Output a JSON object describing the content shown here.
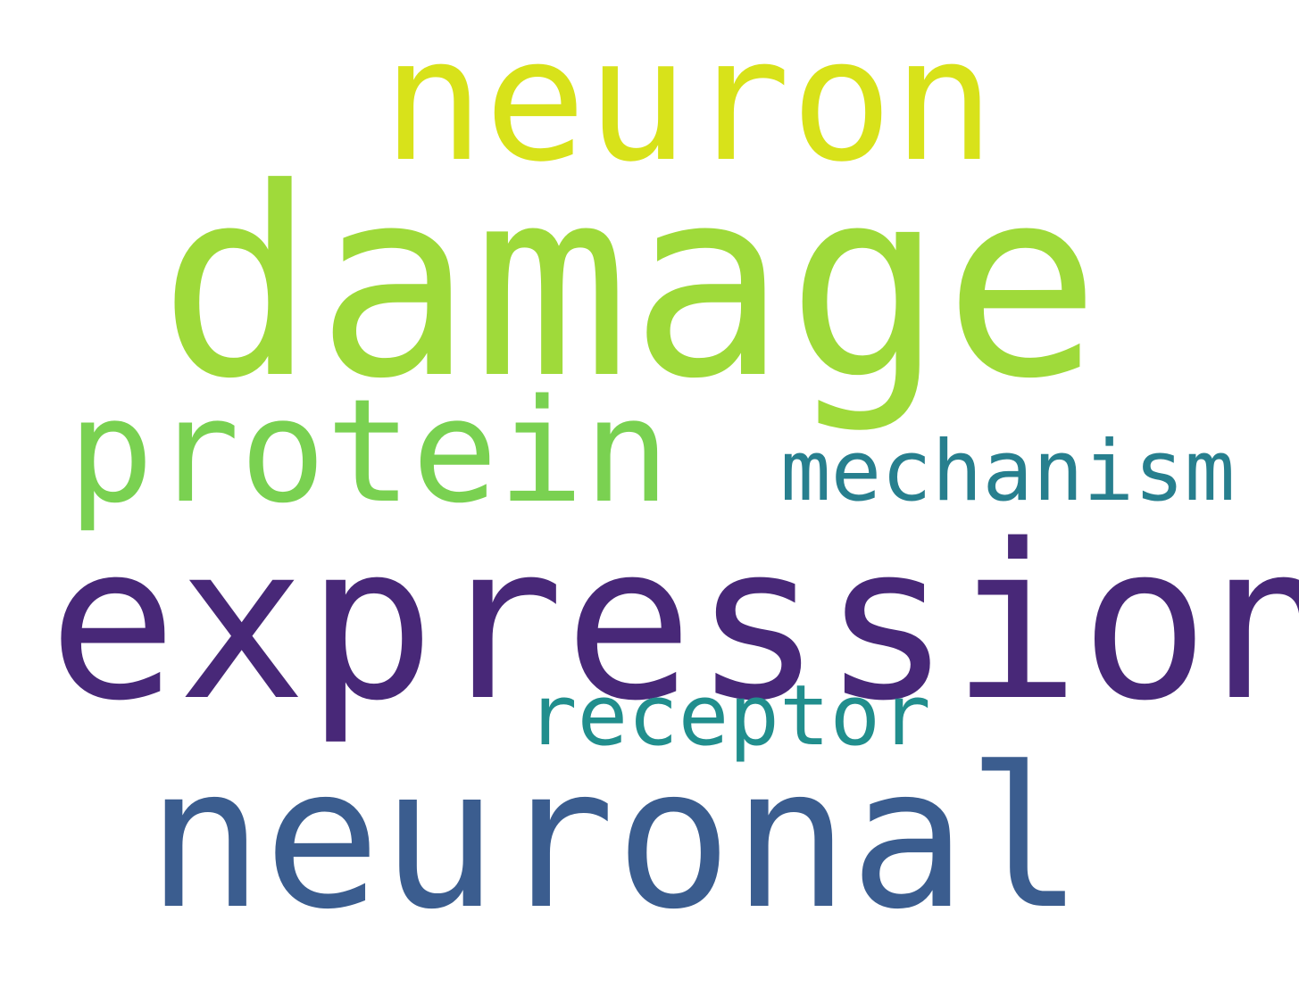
{
  "words": {
    "neuron": {
      "text": "neuron",
      "color": "#d8e21a"
    },
    "damage": {
      "text": "damage",
      "color": "#9fda3a"
    },
    "protein": {
      "text": "protein",
      "color": "#7ad151"
    },
    "mechanism": {
      "text": "mechanism",
      "color": "#277f8e"
    },
    "expression": {
      "text": "expression",
      "color": "#482878"
    },
    "receptor": {
      "text": "receptor",
      "color": "#218e8d"
    },
    "neuronal": {
      "text": "neuronal",
      "color": "#3b5d8f"
    }
  },
  "background_color": "#ffffff"
}
